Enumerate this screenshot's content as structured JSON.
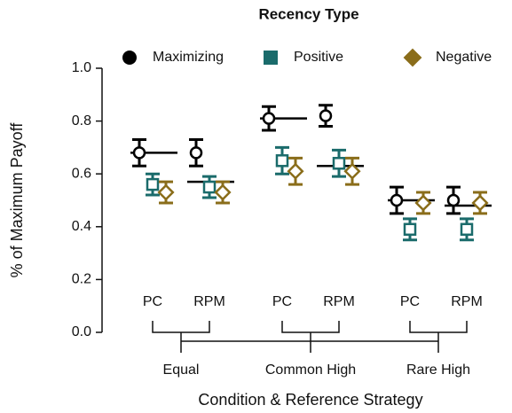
{
  "chart_data": {
    "type": "dot",
    "title": "Recency Type",
    "y_label": "% of Maximum Payoff",
    "x_label": "Condition & Reference Strategy",
    "categories": [
      "PC",
      "RPM",
      "PC",
      "RPM",
      "PC",
      "RPM"
    ],
    "groups": [
      "Equal",
      "Common High",
      "Rare High"
    ],
    "ylim": [
      0,
      1
    ],
    "yticks": [
      {
        "value": 0,
        "label": "0.0"
      },
      0.2,
      0.4,
      0.6,
      0.8,
      {
        "value": 1,
        "label": "1.0"
      }
    ],
    "series": [
      {
        "name": "Maximizing",
        "color": "#000000",
        "marker": "circle",
        "values": [
          0.68,
          0.68,
          0.81,
          0.82,
          0.5,
          0.5
        ],
        "errors": [
          0.05,
          0.05,
          0.045,
          0.04,
          0.05,
          0.05
        ]
      },
      {
        "name": "Positive",
        "color": "#1a6b6b",
        "marker": "square",
        "values": [
          0.56,
          0.55,
          0.65,
          0.64,
          0.39,
          0.39
        ],
        "errors": [
          0.04,
          0.04,
          0.05,
          0.05,
          0.04,
          0.04
        ]
      },
      {
        "name": "Negative",
        "color": "#8a6d1a",
        "marker": "diamond",
        "values": [
          0.53,
          0.53,
          0.61,
          0.61,
          0.49,
          0.49
        ],
        "errors": [
          0.04,
          0.04,
          0.05,
          0.05,
          0.04,
          0.04
        ]
      }
    ],
    "reference_values": [
      0.68,
      0.57,
      0.81,
      0.63,
      0.5,
      0.48
    ]
  }
}
